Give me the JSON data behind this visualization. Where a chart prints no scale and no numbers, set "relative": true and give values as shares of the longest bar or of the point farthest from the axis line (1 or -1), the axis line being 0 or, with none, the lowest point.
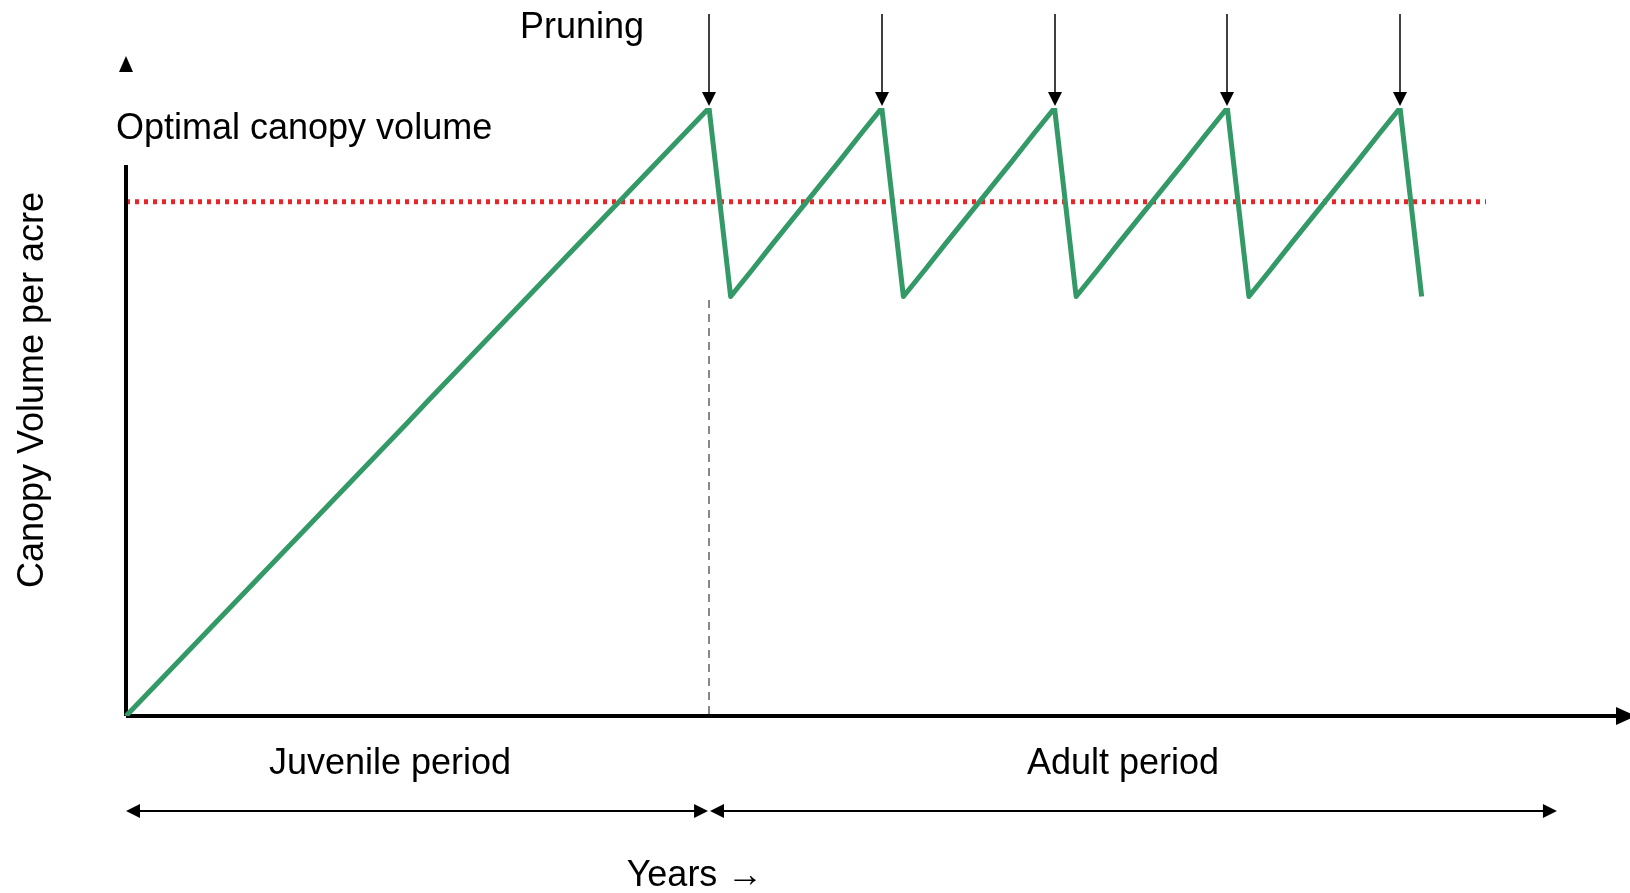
{
  "chart_data": {
    "type": "line",
    "relative": true,
    "xlabel": "Years →",
    "ylabel": "Canopy Volume per acre",
    "tick_labels": false,
    "legend": false,
    "marker": "none",
    "line_style": "solid",
    "categories": [
      null,
      null,
      null,
      null,
      null,
      null,
      null,
      null,
      null,
      null,
      null,
      null,
      null,
      null,
      null,
      null,
      null,
      null,
      null,
      null,
      null,
      null,
      null,
      null,
      null,
      null,
      null,
      null,
      null,
      null,
      null,
      null,
      null,
      null,
      null,
      null,
      null,
      null,
      null,
      null,
      null,
      null,
      null,
      null,
      null,
      null,
      null,
      null,
      null,
      null,
      null,
      null,
      null,
      null,
      null,
      null,
      null,
      null,
      null,
      null,
      null,
      null,
      null,
      null,
      null,
      null,
      null,
      null,
      null,
      null
    ],
    "series": [
      {
        "color": "#339966",
        "values": [
          0,
          0.037,
          0.074,
          0.111,
          0.148,
          0.185,
          0.222,
          0.259,
          0.296,
          0.333,
          0.37,
          0.407,
          0.444,
          0.481,
          0.519,
          0.556,
          0.593,
          0.63,
          0.667,
          0.704,
          0.741,
          0.778,
          0.815,
          0.852,
          0.889,
          0.926,
          0.963,
          1,
          0.69,
          0.734,
          0.779,
          0.823,
          0.867,
          0.911,
          0.956,
          1,
          0.69,
          0.734,
          0.779,
          0.823,
          0.867,
          0.911,
          0.956,
          1,
          0.69,
          0.734,
          0.779,
          0.823,
          0.867,
          0.911,
          0.956,
          1,
          0.69,
          0.734,
          0.779,
          0.823,
          0.867,
          0.911,
          0.956,
          1,
          0.69,
          null,
          null,
          null,
          null,
          null,
          null,
          null,
          null,
          null
        ]
      }
    ],
    "ref_lines": [
      {
        "axis": "y",
        "value": 0.846,
        "label": "Optimal canopy volume",
        "color": "#e8262a",
        "line_style": "dotted"
      }
    ],
    "annotations": [
      "Pruning",
      "Juvenile period",
      "Adult period"
    ]
  }
}
